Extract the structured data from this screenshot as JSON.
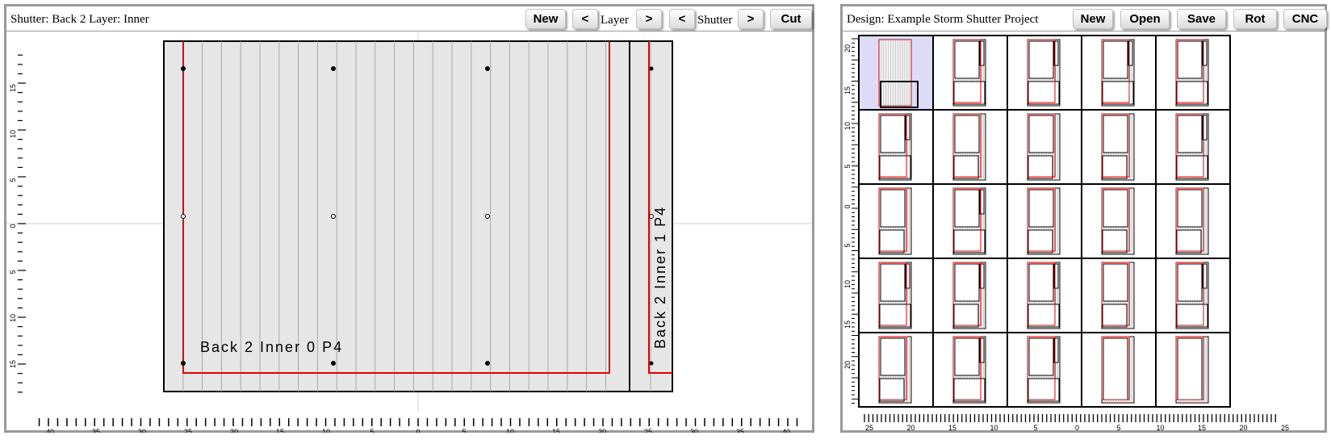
{
  "shutter_panel": {
    "title": "Shutter: Back 2 Layer: Inner",
    "buttons": {
      "new": "New",
      "layer_prev": "<",
      "layer_label": "Layer",
      "layer_next": ">",
      "shutter_prev": "<",
      "shutter_label": "Shutter",
      "shutter_next": ">",
      "cut": "Cut"
    },
    "piece_labels": [
      "Back 2 Inner 0 P4",
      "Back 2 Inner 1 P4"
    ],
    "x_ticks": [
      "40",
      "35",
      "30",
      "25",
      "20",
      "15",
      "10",
      "5",
      "0",
      "5",
      "10",
      "15",
      "20",
      "25",
      "30",
      "35",
      "40"
    ],
    "y_ticks": [
      "15",
      "10",
      "5",
      "0",
      "5",
      "10",
      "15"
    ]
  },
  "design_panel": {
    "title": "Design: Example Storm Shutter Project",
    "buttons": {
      "new": "New",
      "open": "Open",
      "save": "Save",
      "rot": "Rot",
      "cnc": "CNC"
    },
    "x_ticks": [
      "25",
      "20",
      "15",
      "10",
      "5",
      "0",
      "5",
      "10",
      "15",
      "20",
      "25"
    ],
    "y_ticks": [
      "20",
      "15",
      "10",
      "5",
      "0",
      "5",
      "10",
      "15",
      "20"
    ],
    "grid": {
      "rows": 5,
      "cols": 5,
      "selected": "r1c1"
    }
  },
  "colors": {
    "cut_line": "#e00000",
    "material": "#e6e6e6",
    "selected_cell": "#dcdcf8",
    "slat_line": "#a8a8a8",
    "frame": "#9a9a9a"
  }
}
